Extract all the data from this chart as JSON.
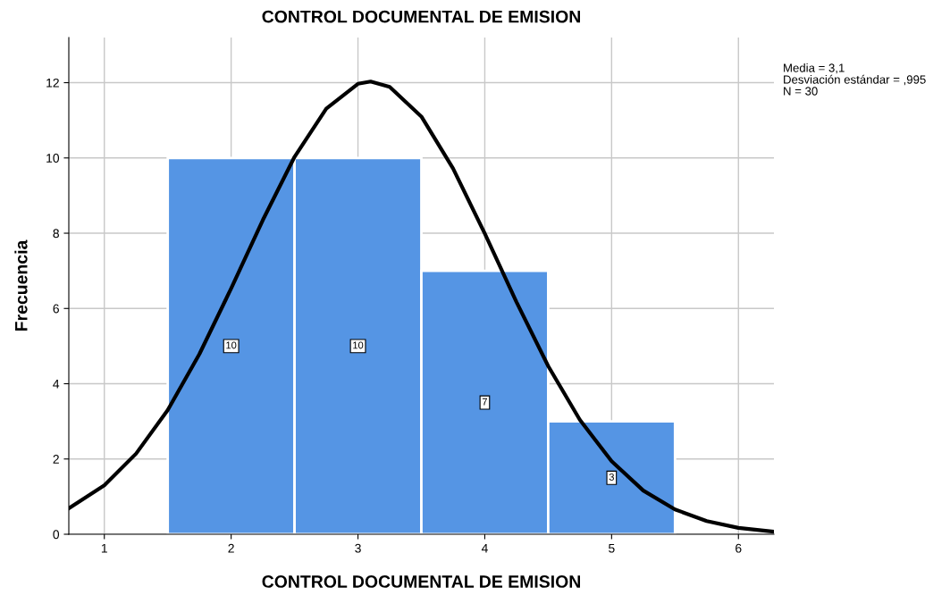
{
  "chart_data": {
    "type": "histogram",
    "title": "CONTROL DOCUMENTAL DE EMISION",
    "xlabel": "CONTROL DOCUMENTAL DE EMISION",
    "ylabel": "Frecuencia",
    "bins": [
      1.5,
      2.5,
      3.5,
      4.5,
      5.5
    ],
    "values": [
      10,
      10,
      7,
      3
    ],
    "color": "#5595e4",
    "value_labels": [
      "10",
      "10",
      "7",
      "3"
    ],
    "series": [
      {
        "type": "line",
        "color": "#000000",
        "x": [
          0.72,
          1.0,
          1.25,
          1.5,
          1.75,
          2.0,
          2.25,
          2.5,
          2.75,
          3.0,
          3.1,
          3.25,
          3.5,
          3.75,
          4.0,
          4.25,
          4.5,
          4.75,
          5.0,
          5.25,
          5.5,
          5.75,
          6.0,
          6.28
        ],
        "values": [
          0.69,
          1.3,
          2.14,
          3.3,
          4.79,
          6.53,
          8.35,
          10.03,
          11.31,
          11.97,
          12.03,
          11.89,
          11.1,
          9.72,
          7.99,
          6.17,
          4.47,
          3.04,
          1.94,
          1.16,
          0.66,
          0.35,
          0.17,
          0.07
        ]
      }
    ],
    "annotations": [
      "Media = 3,1",
      "Desviación estándar = ,995",
      "N = 30"
    ],
    "xlim": [
      0.72,
      6.28
    ],
    "ylim": [
      0,
      13.2
    ],
    "xticks": [
      1,
      2,
      3,
      4,
      5,
      6
    ],
    "yticks": [
      0,
      2,
      4,
      6,
      8,
      10,
      12
    ],
    "grid": true,
    "legend": false
  }
}
